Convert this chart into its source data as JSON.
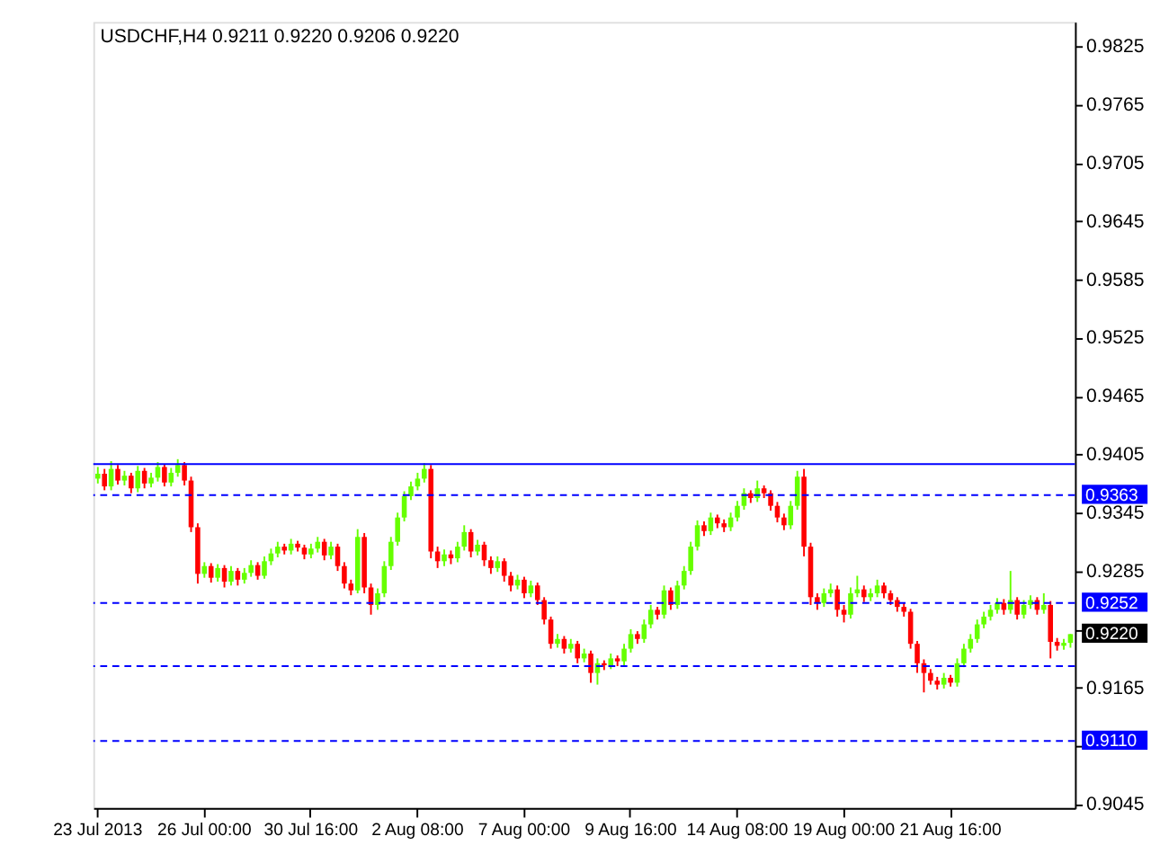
{
  "chart_data": {
    "type": "candlestick",
    "title": "USDCHF,H4  0.9211 0.9220 0.9206 0.9220",
    "categories": [
      "23 Jul 2013",
      null,
      null,
      null,
      null,
      null,
      null,
      null,
      null,
      null,
      null,
      null,
      null,
      null,
      null,
      null,
      "26 Jul 00:00",
      null,
      null,
      null,
      null,
      null,
      null,
      null,
      null,
      null,
      null,
      null,
      null,
      null,
      null,
      null,
      "30 Jul 16:00",
      null,
      null,
      null,
      null,
      null,
      null,
      null,
      null,
      null,
      null,
      null,
      null,
      null,
      null,
      null,
      "2 Aug 08:00",
      null,
      null,
      null,
      null,
      null,
      null,
      null,
      null,
      null,
      null,
      null,
      null,
      null,
      null,
      null,
      "7 Aug 00:00",
      null,
      null,
      null,
      null,
      null,
      null,
      null,
      null,
      null,
      null,
      null,
      null,
      null,
      null,
      null,
      "9 Aug 16:00",
      null,
      null,
      null,
      null,
      null,
      null,
      null,
      null,
      null,
      null,
      null,
      null,
      null,
      null,
      null,
      "14 Aug 08:00",
      null,
      null,
      null,
      null,
      null,
      null,
      null,
      null,
      null,
      null,
      null,
      null,
      null,
      null,
      null,
      "19 Aug 00:00",
      null,
      null,
      null,
      null,
      null,
      null,
      null,
      null,
      null,
      null,
      null,
      null,
      null,
      null,
      null,
      "21 Aug 16:00",
      null,
      null,
      null,
      null,
      null,
      null,
      null,
      null,
      null,
      null,
      null,
      null,
      null,
      null,
      null,
      null,
      null,
      null
    ],
    "ohlc": [
      [
        0.938,
        0.9392,
        0.9375,
        0.9385
      ],
      [
        0.9385,
        0.939,
        0.9368,
        0.9372
      ],
      [
        0.9372,
        0.9398,
        0.9368,
        0.939
      ],
      [
        0.939,
        0.9394,
        0.9374,
        0.9378
      ],
      [
        0.9378,
        0.9388,
        0.9373,
        0.9383
      ],
      [
        0.9383,
        0.9386,
        0.9365,
        0.937
      ],
      [
        0.937,
        0.9393,
        0.9366,
        0.9388
      ],
      [
        0.9388,
        0.9391,
        0.937,
        0.9375
      ],
      [
        0.9375,
        0.9386,
        0.9371,
        0.9381
      ],
      [
        0.9381,
        0.9397,
        0.9377,
        0.9392
      ],
      [
        0.9392,
        0.9395,
        0.9372,
        0.9376
      ],
      [
        0.9376,
        0.9391,
        0.9372,
        0.9386
      ],
      [
        0.9386,
        0.94,
        0.9382,
        0.9394
      ],
      [
        0.9394,
        0.9397,
        0.9373,
        0.9378
      ],
      [
        0.9378,
        0.9382,
        0.9325,
        0.933
      ],
      [
        0.933,
        0.9334,
        0.9272,
        0.9282
      ],
      [
        0.9282,
        0.9294,
        0.9278,
        0.929
      ],
      [
        0.929,
        0.9293,
        0.9273,
        0.9278
      ],
      [
        0.9278,
        0.9292,
        0.9274,
        0.9288
      ],
      [
        0.9288,
        0.9291,
        0.9268,
        0.9274
      ],
      [
        0.9274,
        0.929,
        0.927,
        0.9285
      ],
      [
        0.9285,
        0.9288,
        0.927,
        0.9276
      ],
      [
        0.9276,
        0.9288,
        0.9272,
        0.9283
      ],
      [
        0.9283,
        0.9296,
        0.9279,
        0.9291
      ],
      [
        0.9291,
        0.9294,
        0.9276,
        0.928
      ],
      [
        0.928,
        0.93,
        0.9277,
        0.9295
      ],
      [
        0.9295,
        0.9308,
        0.9291,
        0.9303
      ],
      [
        0.9303,
        0.9315,
        0.9299,
        0.931
      ],
      [
        0.931,
        0.9313,
        0.9302,
        0.9306
      ],
      [
        0.9306,
        0.9318,
        0.9302,
        0.9313
      ],
      [
        0.9313,
        0.9316,
        0.9305,
        0.9309
      ],
      [
        0.9309,
        0.9312,
        0.9297,
        0.9302
      ],
      [
        0.9302,
        0.9313,
        0.9298,
        0.9308
      ],
      [
        0.9308,
        0.932,
        0.9304,
        0.9315
      ],
      [
        0.9315,
        0.9318,
        0.9296,
        0.9301
      ],
      [
        0.9301,
        0.9315,
        0.9297,
        0.931
      ],
      [
        0.931,
        0.9313,
        0.9285,
        0.929
      ],
      [
        0.929,
        0.9294,
        0.9267,
        0.9272
      ],
      [
        0.9272,
        0.9276,
        0.926,
        0.9265
      ],
      [
        0.9265,
        0.9328,
        0.9262,
        0.932
      ],
      [
        0.932,
        0.9324,
        0.9262,
        0.9268
      ],
      [
        0.9268,
        0.9272,
        0.924,
        0.925
      ],
      [
        0.925,
        0.9267,
        0.9245,
        0.9262
      ],
      [
        0.9262,
        0.9295,
        0.9258,
        0.929
      ],
      [
        0.929,
        0.932,
        0.9286,
        0.9315
      ],
      [
        0.9315,
        0.9345,
        0.9311,
        0.934
      ],
      [
        0.934,
        0.9367,
        0.9336,
        0.9362
      ],
      [
        0.9362,
        0.9377,
        0.9358,
        0.9372
      ],
      [
        0.9372,
        0.9386,
        0.9368,
        0.938
      ],
      [
        0.938,
        0.9396,
        0.9376,
        0.939
      ],
      [
        0.939,
        0.9394,
        0.9298,
        0.9305
      ],
      [
        0.9305,
        0.931,
        0.9288,
        0.9295
      ],
      [
        0.9295,
        0.9307,
        0.929,
        0.9302
      ],
      [
        0.9302,
        0.9306,
        0.9292,
        0.9298
      ],
      [
        0.9298,
        0.9315,
        0.9294,
        0.931
      ],
      [
        0.931,
        0.9332,
        0.9306,
        0.9325
      ],
      [
        0.9325,
        0.9328,
        0.9299,
        0.9305
      ],
      [
        0.9305,
        0.9317,
        0.9301,
        0.9312
      ],
      [
        0.9312,
        0.9315,
        0.929,
        0.9296
      ],
      [
        0.9296,
        0.93,
        0.9282,
        0.9288
      ],
      [
        0.9288,
        0.93,
        0.9284,
        0.9295
      ],
      [
        0.9295,
        0.9298,
        0.9274,
        0.928
      ],
      [
        0.928,
        0.9284,
        0.9264,
        0.927
      ],
      [
        0.927,
        0.9281,
        0.9266,
        0.9276
      ],
      [
        0.9276,
        0.9279,
        0.9257,
        0.9262
      ],
      [
        0.9262,
        0.9275,
        0.9258,
        0.927
      ],
      [
        0.927,
        0.9273,
        0.925,
        0.9255
      ],
      [
        0.9255,
        0.9258,
        0.923,
        0.9235
      ],
      [
        0.9235,
        0.9238,
        0.9205,
        0.921
      ],
      [
        0.921,
        0.922,
        0.9206,
        0.9215
      ],
      [
        0.9215,
        0.9218,
        0.92,
        0.9205
      ],
      [
        0.9205,
        0.9215,
        0.9201,
        0.921
      ],
      [
        0.921,
        0.9213,
        0.919,
        0.9195
      ],
      [
        0.9195,
        0.9205,
        0.9191,
        0.92
      ],
      [
        0.92,
        0.9203,
        0.917,
        0.918
      ],
      [
        0.918,
        0.9195,
        0.9168,
        0.919
      ],
      [
        0.919,
        0.9193,
        0.9183,
        0.9188
      ],
      [
        0.9188,
        0.92,
        0.9184,
        0.9195
      ],
      [
        0.9195,
        0.9198,
        0.9187,
        0.9192
      ],
      [
        0.9192,
        0.921,
        0.9188,
        0.9205
      ],
      [
        0.9205,
        0.9225,
        0.9201,
        0.922
      ],
      [
        0.922,
        0.9223,
        0.921,
        0.9215
      ],
      [
        0.9215,
        0.9235,
        0.9211,
        0.923
      ],
      [
        0.923,
        0.925,
        0.9226,
        0.9245
      ],
      [
        0.9245,
        0.9248,
        0.9235,
        0.924
      ],
      [
        0.924,
        0.927,
        0.9236,
        0.9265
      ],
      [
        0.9265,
        0.9268,
        0.9245,
        0.925
      ],
      [
        0.925,
        0.9275,
        0.9246,
        0.927
      ],
      [
        0.927,
        0.929,
        0.9266,
        0.9285
      ],
      [
        0.9285,
        0.9315,
        0.9281,
        0.931
      ],
      [
        0.931,
        0.9337,
        0.9306,
        0.9332
      ],
      [
        0.9332,
        0.9336,
        0.9321,
        0.9326
      ],
      [
        0.9326,
        0.9345,
        0.9322,
        0.934
      ],
      [
        0.934,
        0.9343,
        0.9329,
        0.9334
      ],
      [
        0.9334,
        0.9338,
        0.9325,
        0.933
      ],
      [
        0.933,
        0.9345,
        0.9326,
        0.934
      ],
      [
        0.934,
        0.9357,
        0.9336,
        0.9352
      ],
      [
        0.9352,
        0.937,
        0.9348,
        0.9365
      ],
      [
        0.9365,
        0.9368,
        0.9355,
        0.936
      ],
      [
        0.936,
        0.9378,
        0.9356,
        0.937
      ],
      [
        0.937,
        0.9373,
        0.936,
        0.9365
      ],
      [
        0.9365,
        0.9368,
        0.9347,
        0.9352
      ],
      [
        0.9352,
        0.9356,
        0.9335,
        0.934
      ],
      [
        0.934,
        0.9344,
        0.9327,
        0.9332
      ],
      [
        0.9332,
        0.9357,
        0.9328,
        0.9352
      ],
      [
        0.9352,
        0.9388,
        0.9348,
        0.9382
      ],
      [
        0.9382,
        0.939,
        0.93,
        0.931
      ],
      [
        0.931,
        0.9314,
        0.925,
        0.9258
      ],
      [
        0.9258,
        0.9262,
        0.9245,
        0.9252
      ],
      [
        0.9252,
        0.9267,
        0.9248,
        0.9262
      ],
      [
        0.9262,
        0.9272,
        0.9258,
        0.9266
      ],
      [
        0.9266,
        0.927,
        0.9238,
        0.9245
      ],
      [
        0.9245,
        0.925,
        0.9232,
        0.924
      ],
      [
        0.924,
        0.9268,
        0.9236,
        0.9262
      ],
      [
        0.9262,
        0.928,
        0.9258,
        0.9266
      ],
      [
        0.9266,
        0.927,
        0.9253,
        0.9258
      ],
      [
        0.9258,
        0.9267,
        0.9254,
        0.9262
      ],
      [
        0.9262,
        0.9276,
        0.9258,
        0.927
      ],
      [
        0.927,
        0.9273,
        0.9257,
        0.9262
      ],
      [
        0.9262,
        0.9265,
        0.925,
        0.9255
      ],
      [
        0.9255,
        0.9258,
        0.9243,
        0.9248
      ],
      [
        0.9248,
        0.9252,
        0.9238,
        0.9243
      ],
      [
        0.9243,
        0.9246,
        0.9205,
        0.921
      ],
      [
        0.921,
        0.9213,
        0.918,
        0.919
      ],
      [
        0.919,
        0.9194,
        0.916,
        0.918
      ],
      [
        0.918,
        0.9184,
        0.9168,
        0.9172
      ],
      [
        0.9172,
        0.9176,
        0.9163,
        0.9168
      ],
      [
        0.9168,
        0.918,
        0.9164,
        0.9175
      ],
      [
        0.9175,
        0.9178,
        0.9166,
        0.917
      ],
      [
        0.917,
        0.9195,
        0.9166,
        0.919
      ],
      [
        0.919,
        0.921,
        0.9186,
        0.9205
      ],
      [
        0.9205,
        0.922,
        0.9201,
        0.9215
      ],
      [
        0.9215,
        0.9235,
        0.9211,
        0.923
      ],
      [
        0.923,
        0.9243,
        0.9226,
        0.9238
      ],
      [
        0.9238,
        0.925,
        0.9234,
        0.9245
      ],
      [
        0.9245,
        0.9257,
        0.9241,
        0.9252
      ],
      [
        0.9252,
        0.9256,
        0.924,
        0.9245
      ],
      [
        0.9245,
        0.9285,
        0.9241,
        0.9255
      ],
      [
        0.9255,
        0.9258,
        0.9235,
        0.924
      ],
      [
        0.924,
        0.9255,
        0.9236,
        0.925
      ],
      [
        0.925,
        0.926,
        0.9246,
        0.9255
      ],
      [
        0.9255,
        0.9258,
        0.924,
        0.9245
      ],
      [
        0.9245,
        0.9262,
        0.9241,
        0.925
      ],
      [
        0.925,
        0.9254,
        0.9195,
        0.9212
      ],
      [
        0.9212,
        0.9216,
        0.9203,
        0.9208
      ],
      [
        0.9208,
        0.9215,
        0.9204,
        0.9211
      ],
      [
        0.9211,
        0.922,
        0.9206,
        0.922
      ]
    ],
    "colors": [
      "#66ff00",
      "#ff0000",
      "#66ff00",
      "#ff0000",
      "#66ff00",
      "#ff0000",
      "#66ff00",
      "#ff0000",
      "#66ff00",
      "#66ff00",
      "#ff0000",
      "#66ff00",
      "#66ff00",
      "#ff0000",
      "#ff0000",
      "#ff0000",
      "#66ff00",
      "#ff0000",
      "#66ff00",
      "#ff0000",
      "#66ff00",
      "#ff0000",
      "#66ff00",
      "#66ff00",
      "#ff0000",
      "#66ff00",
      "#66ff00",
      "#66ff00",
      "#ff0000",
      "#66ff00",
      "#ff0000",
      "#ff0000",
      "#66ff00",
      "#66ff00",
      "#ff0000",
      "#66ff00",
      "#ff0000",
      "#ff0000",
      "#ff0000",
      "#66ff00",
      "#ff0000",
      "#ff0000",
      "#66ff00",
      "#66ff00",
      "#66ff00",
      "#66ff00",
      "#66ff00",
      "#66ff00",
      "#66ff00",
      "#66ff00",
      "#ff0000",
      "#ff0000",
      "#66ff00",
      "#ff0000",
      "#66ff00",
      "#66ff00",
      "#ff0000",
      "#66ff00",
      "#ff0000",
      "#ff0000",
      "#66ff00",
      "#ff0000",
      "#ff0000",
      "#66ff00",
      "#ff0000",
      "#66ff00",
      "#ff0000",
      "#ff0000",
      "#ff0000",
      "#66ff00",
      "#ff0000",
      "#66ff00",
      "#ff0000",
      "#66ff00",
      "#ff0000",
      "#66ff00",
      "#ff0000",
      "#66ff00",
      "#ff0000",
      "#66ff00",
      "#66ff00",
      "#ff0000",
      "#66ff00",
      "#66ff00",
      "#ff0000",
      "#66ff00",
      "#ff0000",
      "#66ff00",
      "#66ff00",
      "#66ff00",
      "#66ff00",
      "#ff0000",
      "#66ff00",
      "#ff0000",
      "#ff0000",
      "#66ff00",
      "#66ff00",
      "#66ff00",
      "#ff0000",
      "#66ff00",
      "#ff0000",
      "#ff0000",
      "#ff0000",
      "#ff0000",
      "#66ff00",
      "#66ff00",
      "#ff0000",
      "#ff0000",
      "#ff0000",
      "#66ff00",
      "#66ff00",
      "#ff0000",
      "#ff0000",
      "#66ff00",
      "#66ff00",
      "#ff0000",
      "#66ff00",
      "#66ff00",
      "#ff0000",
      "#ff0000",
      "#ff0000",
      "#ff0000",
      "#ff0000",
      "#ff0000",
      "#ff0000",
      "#ff0000",
      "#ff0000",
      "#66ff00",
      "#ff0000",
      "#66ff00",
      "#66ff00",
      "#66ff00",
      "#66ff00",
      "#66ff00",
      "#66ff00",
      "#66ff00",
      "#ff0000",
      "#66ff00",
      "#ff0000",
      "#66ff00",
      "#66ff00",
      "#ff0000",
      "#66ff00",
      "#ff0000",
      "#ff0000",
      "#66ff00",
      "#66ff00"
    ],
    "ylim": [
      0.9041,
      0.985
    ],
    "yticks": [
      0.9825,
      0.9765,
      0.9705,
      0.9645,
      0.9585,
      0.9525,
      0.9465,
      0.9405,
      0.9345,
      0.9285,
      {
        "value": 0.9225,
        "label": null
      },
      0.9165,
      {
        "value": 0.9105,
        "label": null
      },
      0.9045
    ],
    "ref_lines": [
      {
        "axis": "y",
        "value": 0.9395,
        "label": null,
        "color": "#0000ff",
        "line_style": "solid"
      },
      {
        "axis": "y",
        "value": 0.9363,
        "label": "0.9363",
        "color": "#0000ff",
        "line_style": "dashed"
      },
      {
        "axis": "y",
        "value": 0.9252,
        "label": "0.9252",
        "color": "#0000ff",
        "line_style": "dashed"
      },
      {
        "axis": "y",
        "value": 0.9187,
        "label": null,
        "color": "#0000ff",
        "line_style": "dashed"
      },
      {
        "axis": "y",
        "value": 0.911,
        "label": "0.9110",
        "color": "#0000ff",
        "line_style": "dashed"
      }
    ],
    "annotations": [
      "0.9220"
    ],
    "grid": false
  }
}
